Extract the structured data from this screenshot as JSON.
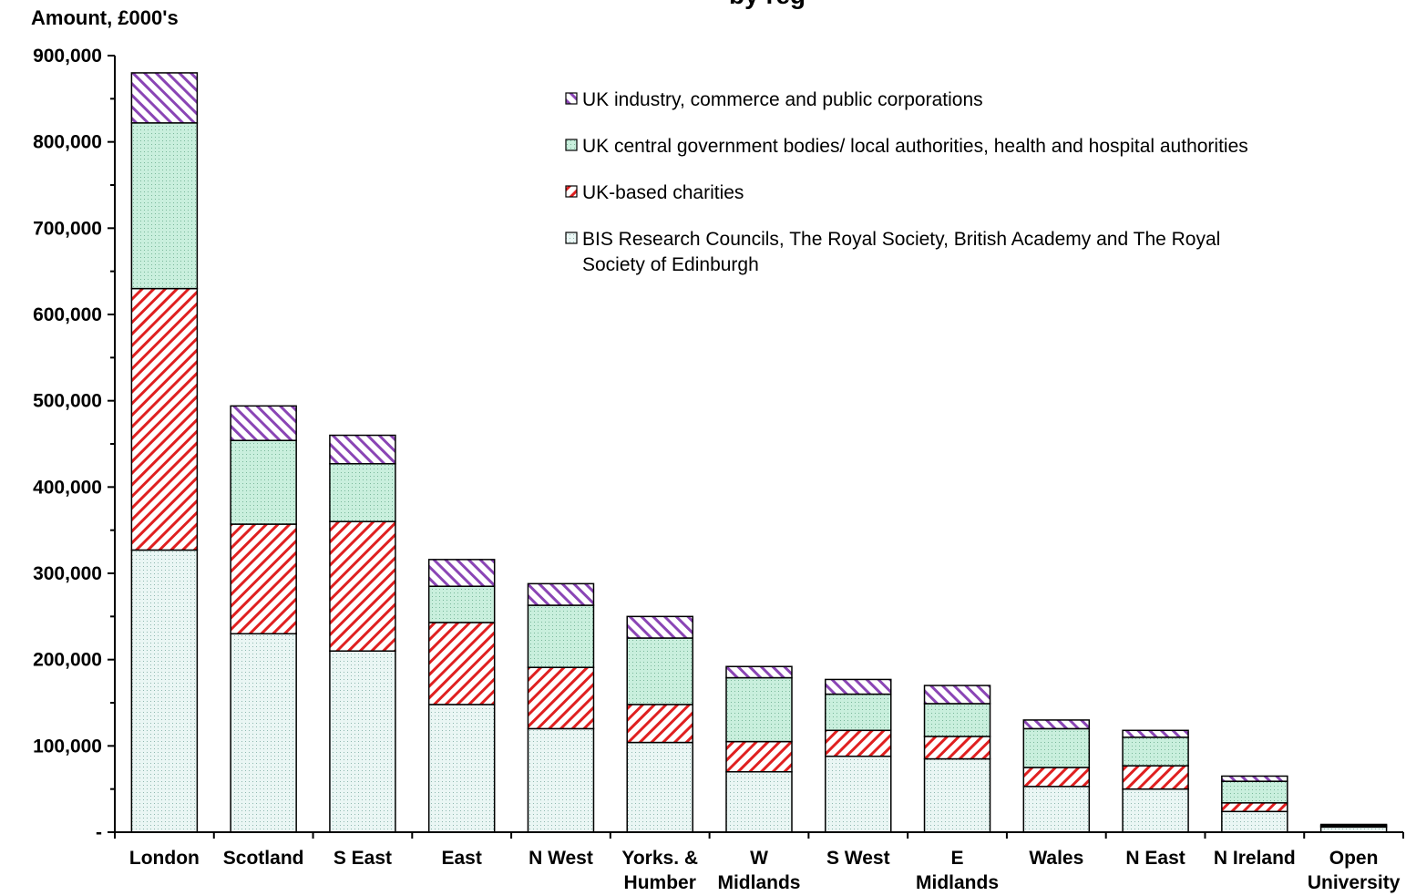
{
  "chart_data": {
    "type": "bar",
    "stacked": true,
    "title": "by reg",
    "ylabel": "Amount, £000's",
    "ylim": [
      0,
      900000
    ],
    "yticks": [
      {
        "value": 0,
        "label": "-"
      },
      {
        "value": 100000,
        "label": "100,000"
      },
      {
        "value": 200000,
        "label": "200,000"
      },
      {
        "value": 300000,
        "label": "300,000"
      },
      {
        "value": 400000,
        "label": "400,000"
      },
      {
        "value": 500000,
        "label": "500,000"
      },
      {
        "value": 600000,
        "label": "600,000"
      },
      {
        "value": 700000,
        "label": "700,000"
      },
      {
        "value": 800000,
        "label": "800,000"
      },
      {
        "value": 900000,
        "label": "900,000"
      }
    ],
    "categories": [
      [
        "London"
      ],
      [
        "Scotland"
      ],
      [
        "S East"
      ],
      [
        "East"
      ],
      [
        "N West"
      ],
      [
        "Yorks. &",
        "Humber"
      ],
      [
        "W",
        "Midlands"
      ],
      [
        "S West"
      ],
      [
        "E",
        "Midlands"
      ],
      [
        "Wales"
      ],
      [
        "N East"
      ],
      [
        "N Ireland"
      ],
      [
        "Open",
        "University"
      ]
    ],
    "series": [
      {
        "name": "BIS Research Councils, The Royal Society, British Academy and The Royal Society of Edinburgh",
        "legend_lines": [
          "BIS Research Councils, The Royal Society, British Academy and The Royal",
          "Society of Edinburgh"
        ],
        "pattern": "dots",
        "color": "#e6f4f2",
        "values": [
          327000,
          230000,
          210000,
          148000,
          120000,
          104000,
          70000,
          88000,
          85000,
          53000,
          50000,
          24000,
          6000
        ]
      },
      {
        "name": "UK-based charities",
        "legend_lines": [
          "UK-based charities"
        ],
        "pattern": "red-hatch",
        "color": "#e02020",
        "values": [
          303000,
          127000,
          150000,
          95000,
          71000,
          44000,
          35000,
          30000,
          26000,
          22000,
          27000,
          10000,
          0
        ]
      },
      {
        "name": "UK central government bodies/ local authorities, health and hospital authorities",
        "legend_lines": [
          "UK central government bodies/ local authorities, health and hospital authorities"
        ],
        "pattern": "green-dots",
        "color": "#c8efdc",
        "values": [
          192000,
          97000,
          67000,
          42000,
          72000,
          77000,
          74000,
          42000,
          38000,
          45000,
          33000,
          25000,
          1500
        ]
      },
      {
        "name": "UK industry, commerce and public corporations",
        "legend_lines": [
          "UK industry, commerce and public corporations"
        ],
        "pattern": "purple-hatch",
        "color": "#8a45b5",
        "values": [
          58000,
          40000,
          33000,
          31000,
          25000,
          25000,
          13000,
          17000,
          21000,
          10000,
          8000,
          6000,
          1500
        ]
      }
    ],
    "legend_position": "top-right",
    "grid": false
  }
}
